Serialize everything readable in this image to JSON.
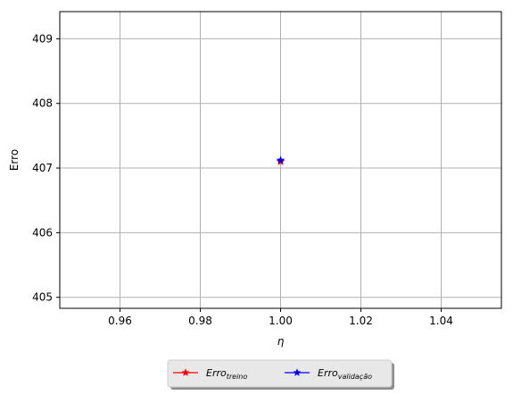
{
  "chart_data": {
    "type": "line",
    "title": "",
    "xlabel": "η",
    "ylabel": "Erro",
    "xlim": [
      0.945,
      1.055
    ],
    "ylim": [
      404.83,
      409.42
    ],
    "xticks": [
      0.96,
      0.98,
      1.0,
      1.02,
      1.04
    ],
    "xtick_labels": [
      "0.96",
      "0.98",
      "1.00",
      "1.02",
      "1.04"
    ],
    "yticks": [
      405,
      406,
      407,
      408,
      409
    ],
    "ytick_labels": [
      "405",
      "406",
      "407",
      "408",
      "409"
    ],
    "grid": true,
    "legend_placement": "bottom-center-outside",
    "series": [
      {
        "name_main": "Erro",
        "name_sub": "treino",
        "color": "#ff0000",
        "marker": "star",
        "x": [
          1.0
        ],
        "y": [
          407.1
        ]
      },
      {
        "name_main": "Erro",
        "name_sub": "validação",
        "color": "#0000ff",
        "marker": "star",
        "x": [
          1.0
        ],
        "y": [
          407.12
        ]
      }
    ]
  }
}
